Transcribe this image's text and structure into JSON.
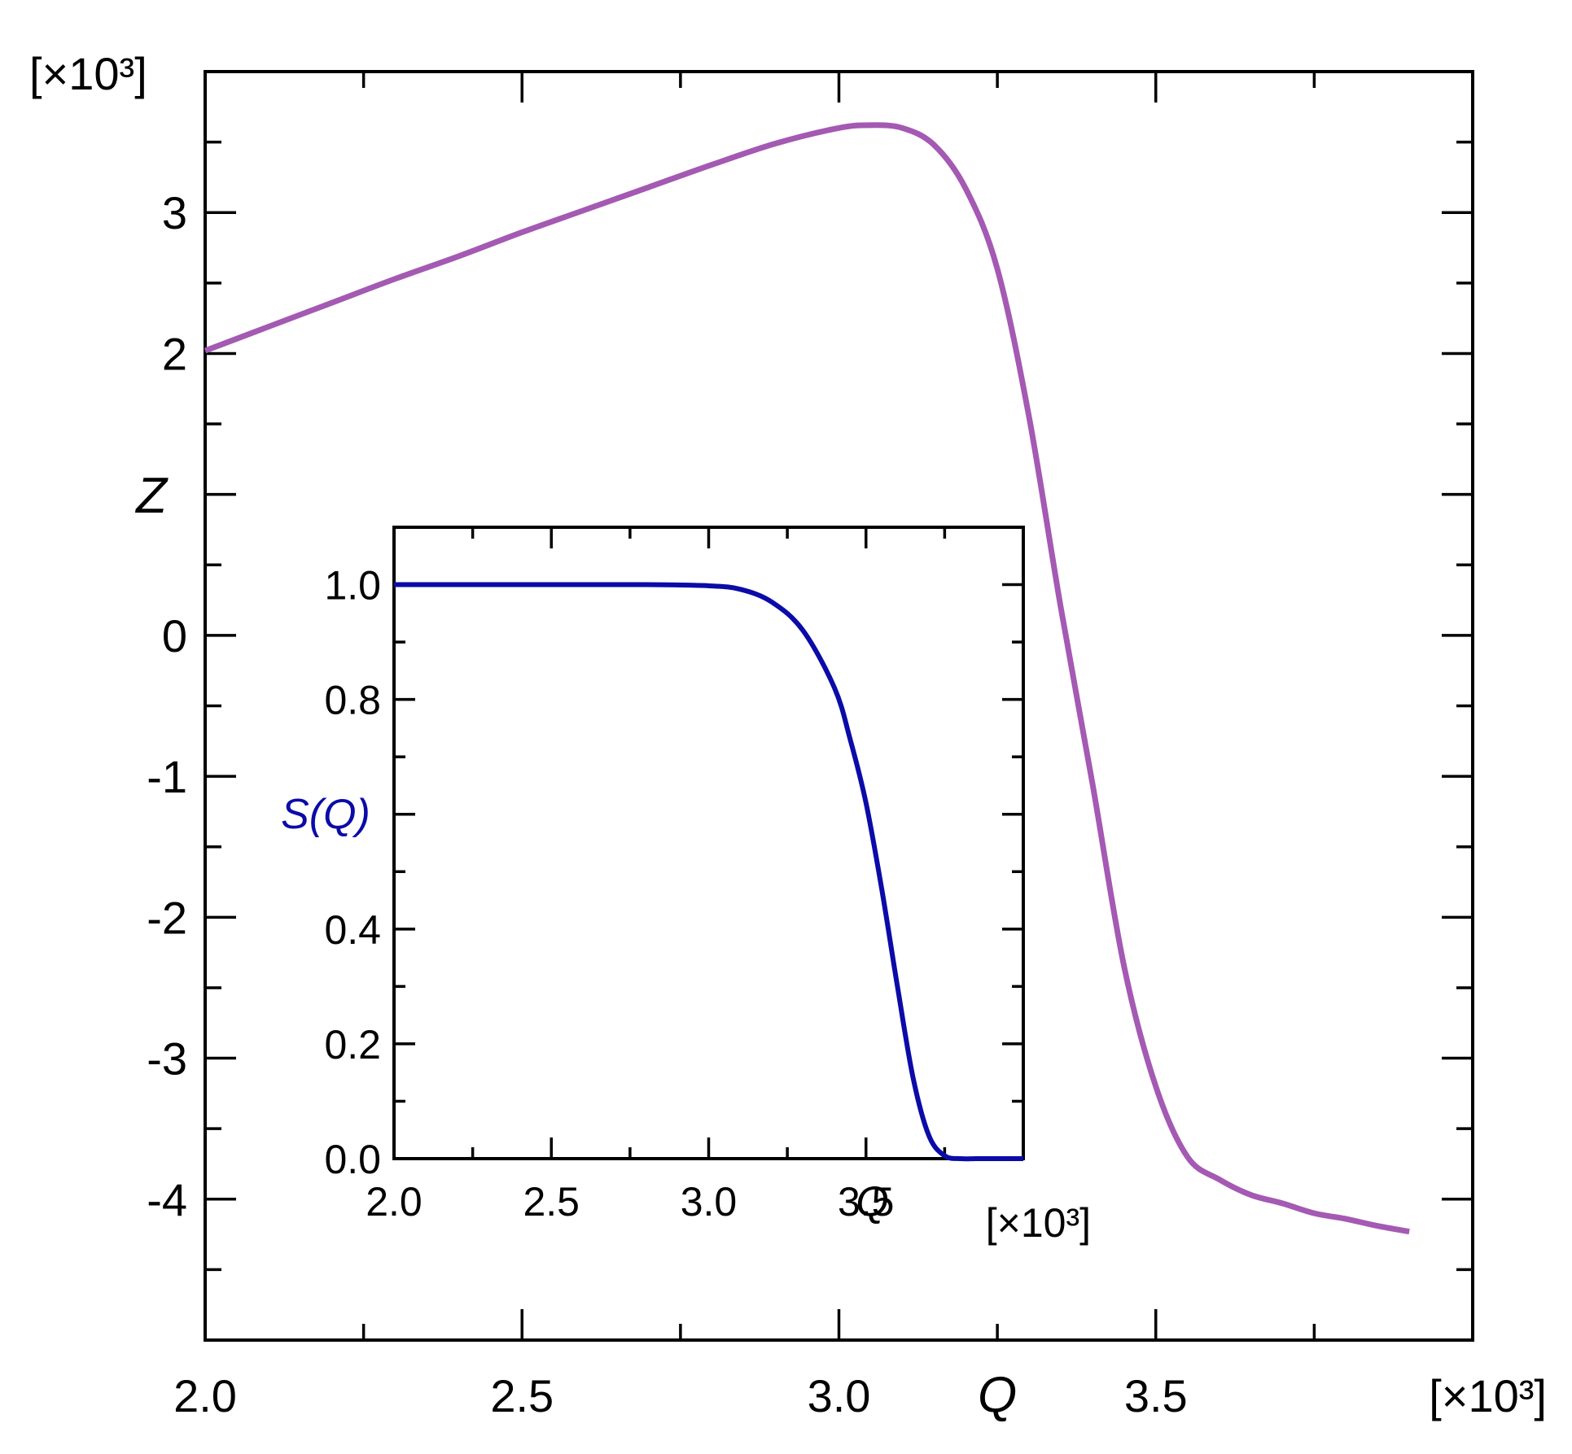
{
  "chart_data": [
    {
      "id": "main",
      "type": "line",
      "xlabel": "Q",
      "ylabel": "Z",
      "x_multiplier": "[×10³]",
      "y_multiplier": "[×10³]",
      "xlim": [
        2.0,
        4.0
      ],
      "ylim": [
        -5.0,
        4.0
      ],
      "xticks": [
        2.0,
        2.5,
        3.0,
        3.5
      ],
      "xtick_labels": [
        "2.0",
        "2.5",
        "3.0",
        "3.5"
      ],
      "yticks": [
        -4,
        -3,
        -2,
        -1,
        0,
        2,
        3
      ],
      "ytick_labels": [
        "-4",
        "-3",
        "-2",
        "-1",
        "0",
        "2",
        "3"
      ],
      "grid": false,
      "series": [
        {
          "color": "#a459b3",
          "x": [
            2.0,
            2.1,
            2.2,
            2.3,
            2.4,
            2.5,
            2.6,
            2.7,
            2.8,
            2.9,
            3.0,
            3.05,
            3.1,
            3.15,
            3.2,
            3.25,
            3.3,
            3.35,
            3.4,
            3.45,
            3.5,
            3.55,
            3.6,
            3.65,
            3.7,
            3.75,
            3.8,
            3.85,
            3.9
          ],
          "y": [
            2.02,
            2.19,
            2.36,
            2.53,
            2.69,
            2.86,
            3.02,
            3.18,
            3.34,
            3.49,
            3.6,
            3.62,
            3.6,
            3.48,
            3.17,
            2.6,
            1.55,
            0.2,
            -1.05,
            -2.35,
            -3.2,
            -3.7,
            -3.86,
            -3.97,
            -4.03,
            -4.1,
            -4.14,
            -4.19,
            -4.23
          ]
        }
      ]
    },
    {
      "id": "inset",
      "type": "line",
      "xlabel": "Q",
      "ylabel": "S(Q)",
      "x_multiplier": "[×10³]",
      "xlim": [
        2.0,
        4.0
      ],
      "ylim": [
        0.0,
        1.1
      ],
      "xticks": [
        2.0,
        2.5,
        3.0,
        3.5
      ],
      "xtick_labels": [
        "2.0",
        "2.5",
        "3.0",
        "3.5"
      ],
      "yticks": [
        0.0,
        0.2,
        0.4,
        0.8,
        1.0
      ],
      "ytick_labels": [
        "0.0",
        "0.2",
        "0.4",
        "0.8",
        "1.0"
      ],
      "grid": false,
      "series": [
        {
          "color": "#0b0ba8",
          "x": [
            2.0,
            2.5,
            2.8,
            3.0,
            3.1,
            3.2,
            3.3,
            3.4,
            3.45,
            3.5,
            3.55,
            3.6,
            3.65,
            3.7,
            3.75,
            3.8,
            3.85,
            3.9,
            4.0
          ],
          "y": [
            1.0,
            1.0,
            1.0,
            0.998,
            0.992,
            0.97,
            0.92,
            0.82,
            0.73,
            0.62,
            0.47,
            0.3,
            0.14,
            0.04,
            0.005,
            0.0,
            0.0,
            0.0,
            0.0
          ]
        }
      ]
    }
  ]
}
